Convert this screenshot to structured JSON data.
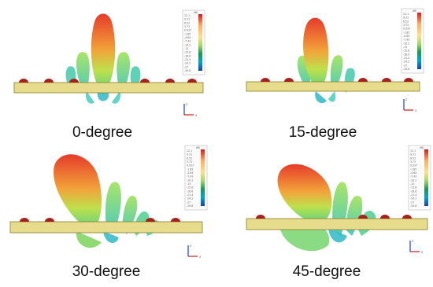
{
  "panels": [
    {
      "caption": "0-degree",
      "steer": 0
    },
    {
      "caption": "15-degree",
      "steer": 15
    },
    {
      "caption": "30-degree",
      "steer": 30
    },
    {
      "caption": "45-degree",
      "steer": 45
    }
  ],
  "colorbar": {
    "unit": "dBi",
    "ticks": [
      "12.1",
      "9.31",
      "6.52",
      "3.73",
      "0.937",
      "-1.85",
      "-4.64",
      "-7.43",
      "-10.2",
      "-13",
      "-15.8",
      "-18.6",
      "-21.4",
      "-24.2",
      "-27",
      "-29.8"
    ],
    "colors": [
      "#d7191c",
      "#f46d43",
      "#fdae61",
      "#fee08b",
      "#d9ef8b",
      "#66bd63",
      "#1a9850",
      "#00a8a8",
      "#2c7bb6",
      "#1a3fb0"
    ]
  },
  "axis_glyphs": {
    "z": "z",
    "x": "x"
  },
  "colors": {
    "substrate": "#e6dc8c",
    "substrate_edge": "#8a7d2a",
    "patch": "#a8201a",
    "lobe_main": "#e2452a",
    "lobe_mid": "#8fd14f",
    "lobe_side": "#3cc9a0",
    "triad_x": "#d21a1a",
    "triad_z": "#1a3fd2"
  }
}
